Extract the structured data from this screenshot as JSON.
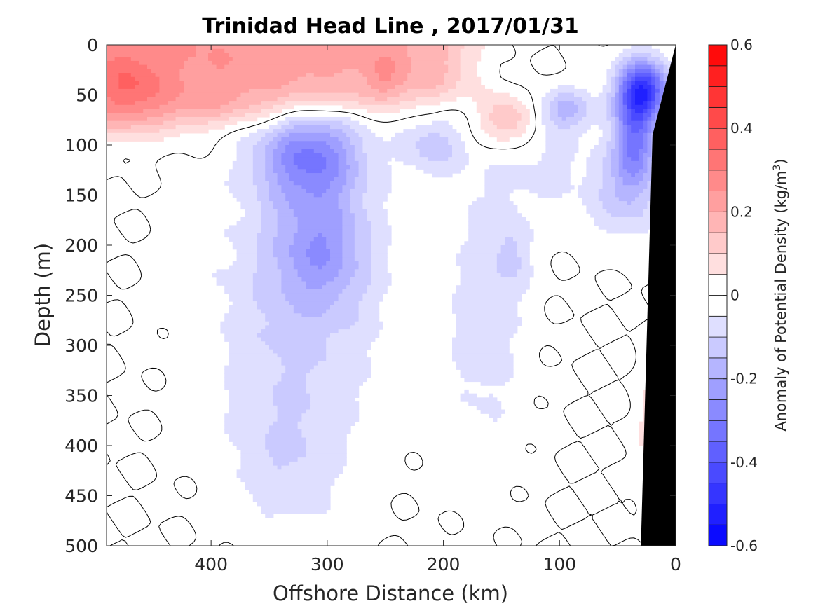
{
  "chart_data": {
    "type": "heatmap",
    "subtype": "filled-contour-section",
    "title": "Trinidad Head Line , 2017/01/31",
    "xlabel": "Offshore Distance (km)",
    "ylabel": "Depth (m)",
    "xlim": [
      490,
      0
    ],
    "ylim": [
      0,
      500
    ],
    "x_reversed": true,
    "y_reversed": true,
    "x_ticks": [
      400,
      300,
      200,
      100,
      0
    ],
    "y_ticks": [
      0,
      50,
      100,
      150,
      200,
      250,
      300,
      350,
      400,
      450,
      500
    ],
    "zero_contour_lines": true,
    "bathymetry_mask_color": "#000000",
    "colorbar": {
      "label": "Anomaly of Potential Density (kg/m",
      "label_superscript": "3",
      "label_suffix": ")",
      "location": "right",
      "range": [
        -0.6,
        0.6
      ],
      "level_step": 0.05,
      "ticks": [
        -0.6,
        -0.4,
        -0.2,
        0,
        0.2,
        0.4,
        0.6
      ],
      "tick_labels": [
        "-0.6",
        "-0.4",
        "-0.2",
        "0",
        "0.2",
        "0.4",
        "0.6"
      ],
      "colormap": "blue-white-red",
      "low_color": "#0000ff",
      "mid_color": "#ffffff",
      "high_color": "#ff0000"
    },
    "features": [
      {
        "name": "surface positive anomaly",
        "x_range": [
          490,
          150
        ],
        "depth_range": [
          0,
          85
        ],
        "value": 0.25
      },
      {
        "name": "offshore subsurface negative core",
        "x": 310,
        "depth": 100,
        "value": -0.25
      },
      {
        "name": "deep negative tongue",
        "x_range": [
          420,
          240
        ],
        "depth_range": [
          150,
          480
        ],
        "value": -0.05
      },
      {
        "name": "nearshore negative tongue",
        "x_range": [
          200,
          130
        ],
        "depth_range": [
          100,
          410
        ],
        "value": -0.05
      },
      {
        "name": "positive lens near 140 km",
        "x": 145,
        "depth": 75,
        "value": 0.15
      },
      {
        "name": "nearshore negative core",
        "x": 30,
        "depth": 45,
        "value": -0.45
      }
    ]
  }
}
